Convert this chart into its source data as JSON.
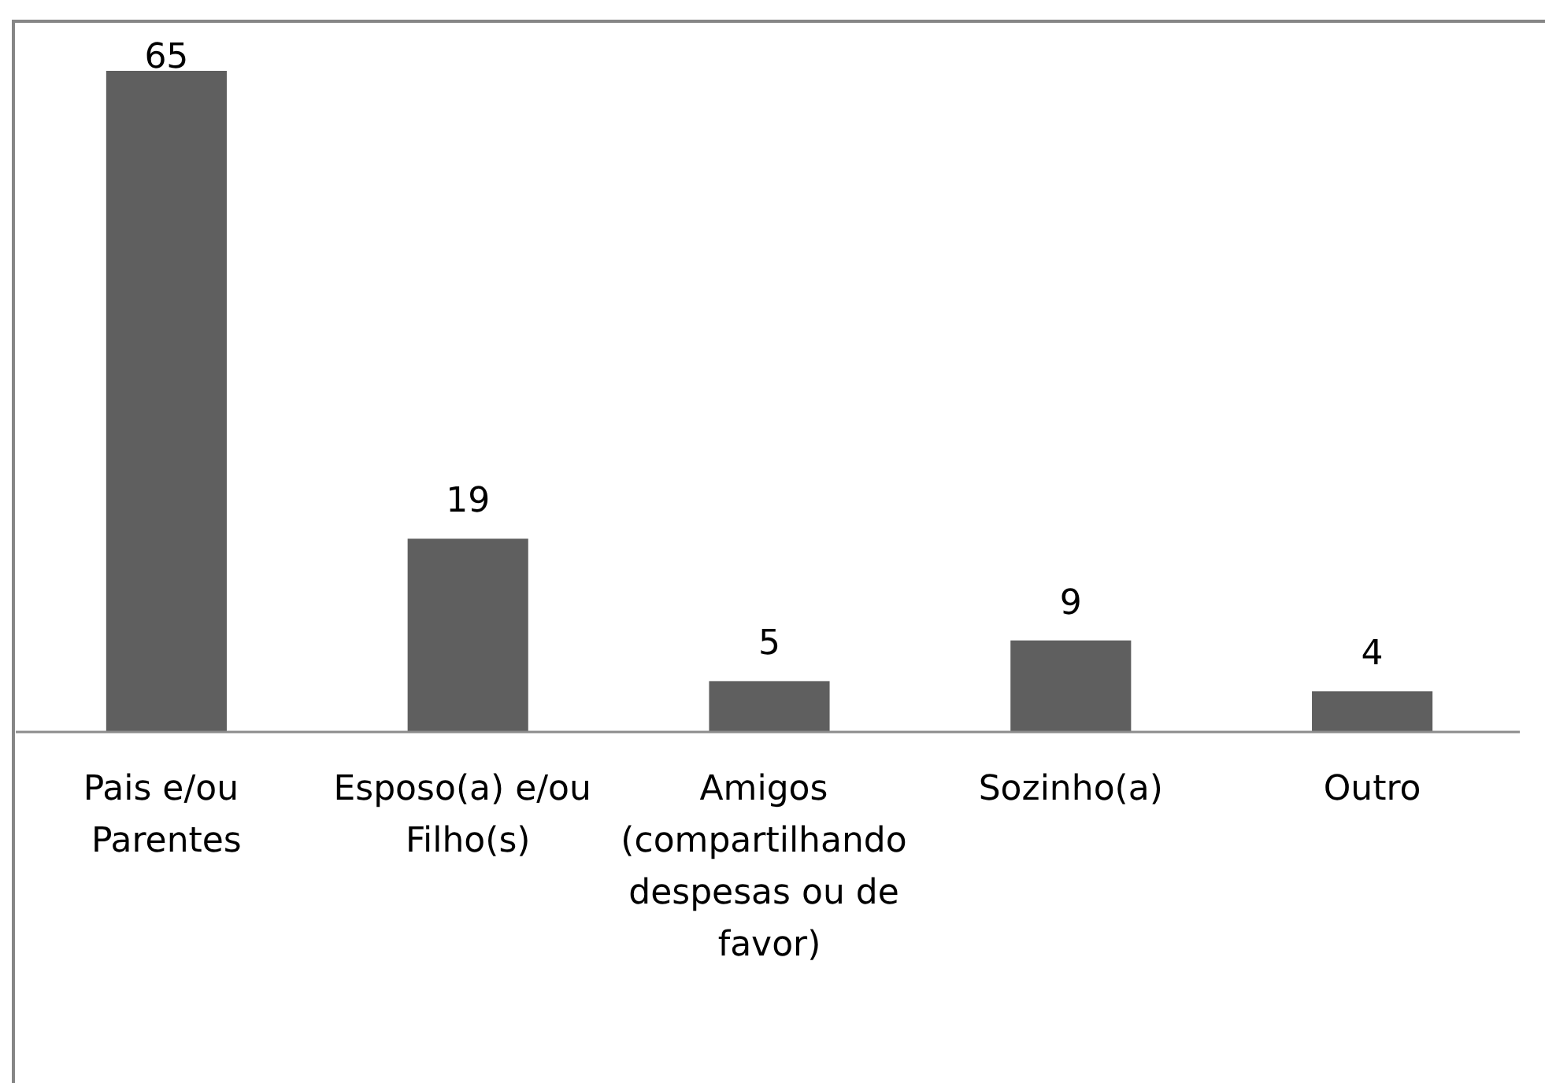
{
  "chart_data": {
    "type": "bar",
    "categories": [
      "Pais e/ou Parentes",
      "Esposo(a) e/ou Filho(s)",
      "Amigos (compartilhando despesas ou de favor)",
      "Sozinho(a)",
      "Outro"
    ],
    "values": [
      65,
      19,
      5,
      9,
      4
    ],
    "color": "#5f5f5f",
    "data_labels": true
  }
}
